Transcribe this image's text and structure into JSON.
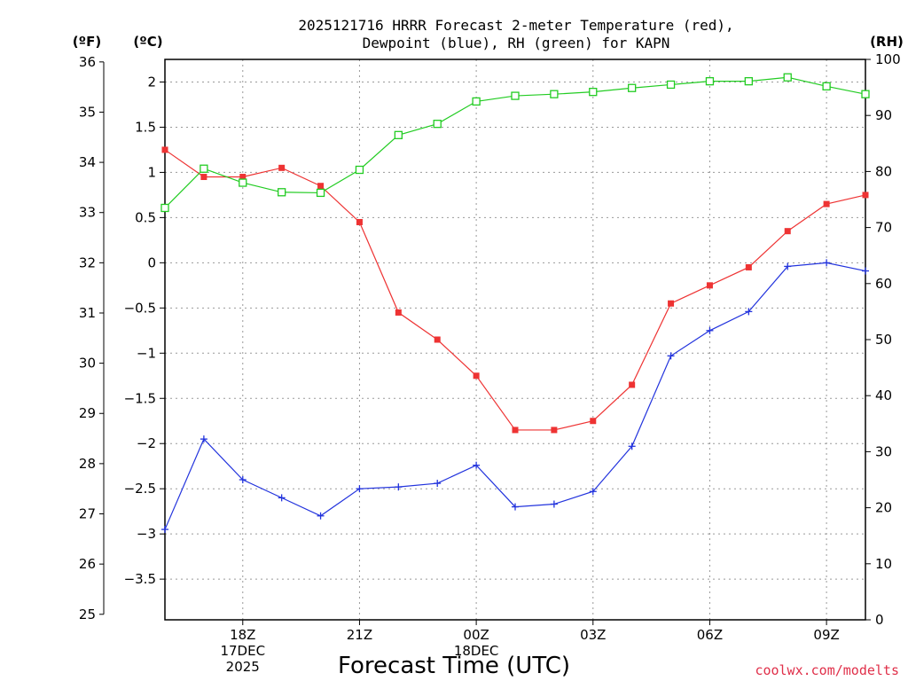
{
  "chart_data": {
    "type": "line",
    "title_line1": "2025121716 HRRR Forecast 2-meter Temperature (red),",
    "title_line2": "Dewpoint (blue), RH (green) for KAPN",
    "xlabel": "Forecast Time (UTC)",
    "credit": "coolwx.com/modelts",
    "unit_f": "(ºF)",
    "unit_c": "(ºC)",
    "unit_rh": "(RH)",
    "x_hours": [
      16,
      17,
      18,
      19,
      20,
      21,
      22,
      23,
      24,
      25,
      26,
      27,
      28,
      29,
      30,
      31,
      32,
      33,
      34
    ],
    "x_ticks": [
      {
        "hour": 18,
        "lines": [
          "18Z",
          "17DEC",
          "2025"
        ]
      },
      {
        "hour": 21,
        "lines": [
          "21Z"
        ]
      },
      {
        "hour": 24,
        "lines": [
          "00Z",
          "18DEC"
        ]
      },
      {
        "hour": 27,
        "lines": [
          "03Z"
        ]
      },
      {
        "hour": 30,
        "lines": [
          "06Z"
        ]
      },
      {
        "hour": 33,
        "lines": [
          "09Z"
        ]
      }
    ],
    "c_axis": {
      "min": -3.95,
      "max": 2.25,
      "ticks": [
        -3.5,
        -3,
        -2.5,
        -2,
        -1.5,
        -1,
        -0.5,
        0,
        0.5,
        1,
        1.5,
        2
      ],
      "labels": [
        "−3.5",
        "−3",
        "−2.5",
        "−2",
        "−1.5",
        "−1",
        "−0.5",
        "0",
        "0.5",
        "1",
        "1.5",
        "2"
      ]
    },
    "f_axis": {
      "ticks": [
        25,
        26,
        27,
        28,
        29,
        30,
        31,
        32,
        33,
        34,
        35,
        36
      ],
      "labels": [
        "25",
        "26",
        "27",
        "28",
        "29",
        "30",
        "31",
        "32",
        "33",
        "34",
        "35",
        "36"
      ]
    },
    "rh_axis": {
      "min": 0,
      "max": 100,
      "ticks": [
        0,
        10,
        20,
        30,
        40,
        50,
        60,
        70,
        80,
        90,
        100
      ],
      "labels": [
        "0",
        "10",
        "20",
        "30",
        "40",
        "50",
        "60",
        "70",
        "80",
        "90",
        "100"
      ]
    },
    "series": [
      {
        "name": "Temperature",
        "unit": "C",
        "color": "#ee3333",
        "values": [
          1.25,
          0.95,
          0.95,
          1.05,
          0.85,
          0.45,
          -0.55,
          -0.85,
          -1.25,
          -1.85,
          -1.85,
          -1.75,
          -1.35,
          -0.45,
          -0.25,
          -0.05,
          0.35,
          0.65,
          0.75
        ]
      },
      {
        "name": "Dewpoint",
        "unit": "C",
        "color": "#2233dd",
        "values": [
          -2.95,
          -1.95,
          -2.4,
          -2.6,
          -2.8,
          -2.5,
          -2.48,
          -2.44,
          -2.24,
          -2.7,
          -2.67,
          -2.53,
          -2.03,
          -1.03,
          -0.75,
          -0.54,
          -0.04,
          0.0,
          -0.09
        ]
      },
      {
        "name": "RH",
        "unit": "%",
        "color": "#22cc22",
        "values": [
          73.5,
          80.5,
          78,
          76.3,
          76.2,
          80.3,
          86.5,
          88.5,
          92.5,
          93.5,
          93.8,
          94.2,
          94.9,
          95.5,
          96.1,
          96.1,
          96.8,
          95.2,
          93.8
        ]
      }
    ]
  }
}
